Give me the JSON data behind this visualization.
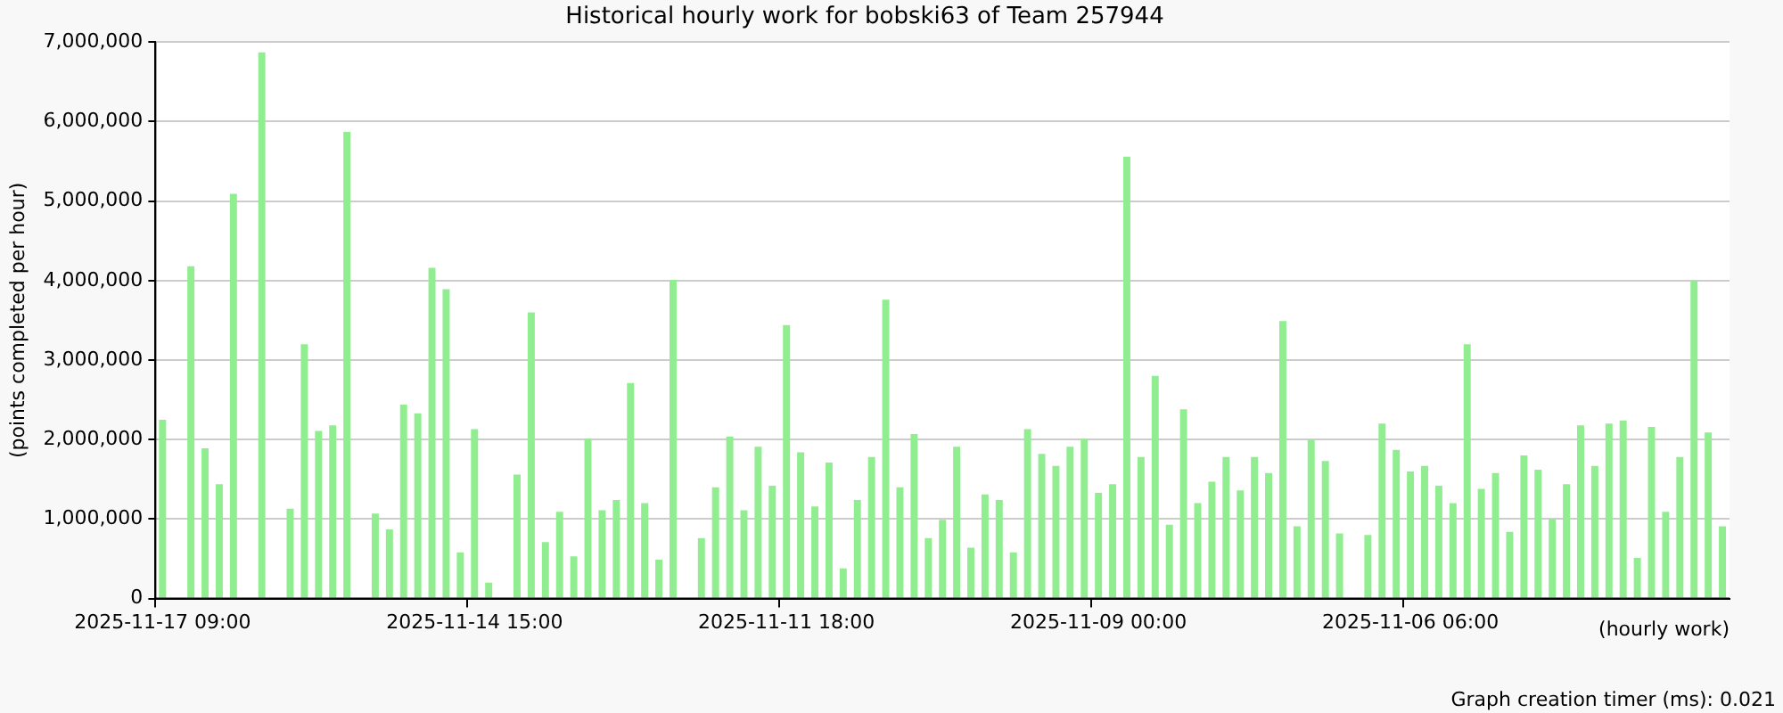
{
  "chart_data": {
    "type": "bar",
    "title": "Historical hourly work for bobski63 of Team 257944",
    "xlabel": "(hourly work)",
    "ylabel": "(points completed per hour)",
    "annotations": [
      "Graph creation timer (ms): 0.021"
    ],
    "categories": [
      "2025-11-17 09:00",
      null,
      null,
      null,
      null,
      null,
      null,
      null,
      null,
      null,
      null,
      null,
      null,
      null,
      null,
      null,
      null,
      null,
      null,
      null,
      null,
      null,
      "2025-11-14 15:00",
      null,
      null,
      null,
      null,
      null,
      null,
      null,
      null,
      null,
      null,
      null,
      null,
      null,
      null,
      null,
      null,
      null,
      null,
      null,
      null,
      null,
      "2025-11-11 18:00",
      null,
      null,
      null,
      null,
      null,
      null,
      null,
      null,
      null,
      null,
      null,
      null,
      null,
      null,
      null,
      null,
      null,
      null,
      null,
      null,
      null,
      "2025-11-09 00:00",
      null,
      null,
      null,
      null,
      null,
      null,
      null,
      null,
      null,
      null,
      null,
      null,
      null,
      null,
      null,
      null,
      null,
      null,
      null,
      null,
      null,
      "2025-11-06 06:00",
      null,
      null,
      null,
      null,
      null,
      null,
      null,
      null,
      null,
      null,
      null,
      null,
      null,
      null,
      null,
      null,
      null,
      null,
      null,
      null,
      null,
      null
    ],
    "series": [
      {
        "color": "#90ee90",
        "values": [
          2250000,
          null,
          4180000,
          1890000,
          1440000,
          5090000,
          null,
          6870000,
          null,
          1130000,
          3200000,
          2110000,
          2180000,
          5870000,
          null,
          1070000,
          870000,
          2440000,
          2330000,
          4160000,
          3890000,
          580000,
          2130000,
          200000,
          null,
          1560000,
          3600000,
          710000,
          1090000,
          530000,
          2010000,
          1110000,
          1240000,
          2710000,
          1200000,
          490000,
          4010000,
          null,
          760000,
          1400000,
          2040000,
          1110000,
          1910000,
          1420000,
          3440000,
          1840000,
          1160000,
          1710000,
          380000,
          1240000,
          1780000,
          3760000,
          1400000,
          2070000,
          760000,
          990000,
          1910000,
          640000,
          1310000,
          1240000,
          580000,
          2130000,
          1820000,
          1670000,
          1910000,
          2010000,
          1330000,
          1440000,
          5560000,
          1780000,
          2800000,
          930000,
          2380000,
          1200000,
          1470000,
          1780000,
          1360000,
          1780000,
          1580000,
          3490000,
          910000,
          2000000,
          1730000,
          820000,
          null,
          800000,
          2200000,
          1870000,
          1600000,
          1670000,
          1420000,
          1200000,
          3200000,
          1380000,
          1580000,
          840000,
          1800000,
          1620000,
          1000000,
          1440000,
          2180000,
          1670000,
          2200000,
          2240000,
          510000,
          2160000,
          1090000,
          1780000,
          4000000,
          2090000,
          910000
        ]
      }
    ],
    "ylim": [
      0,
      7000000
    ],
    "yticks": [
      {
        "value": 0,
        "label": "0"
      },
      {
        "value": 1000000,
        "label": "1,000,000"
      },
      {
        "value": 2000000,
        "label": "2,000,000"
      },
      {
        "value": 3000000,
        "label": "3,000,000"
      },
      {
        "value": 4000000,
        "label": "4,000,000"
      },
      {
        "value": 5000000,
        "label": "5,000,000"
      },
      {
        "value": 6000000,
        "label": "6,000,000"
      },
      {
        "value": 7000000,
        "label": "7,000,000"
      }
    ],
    "grid": "y",
    "legend": false
  }
}
